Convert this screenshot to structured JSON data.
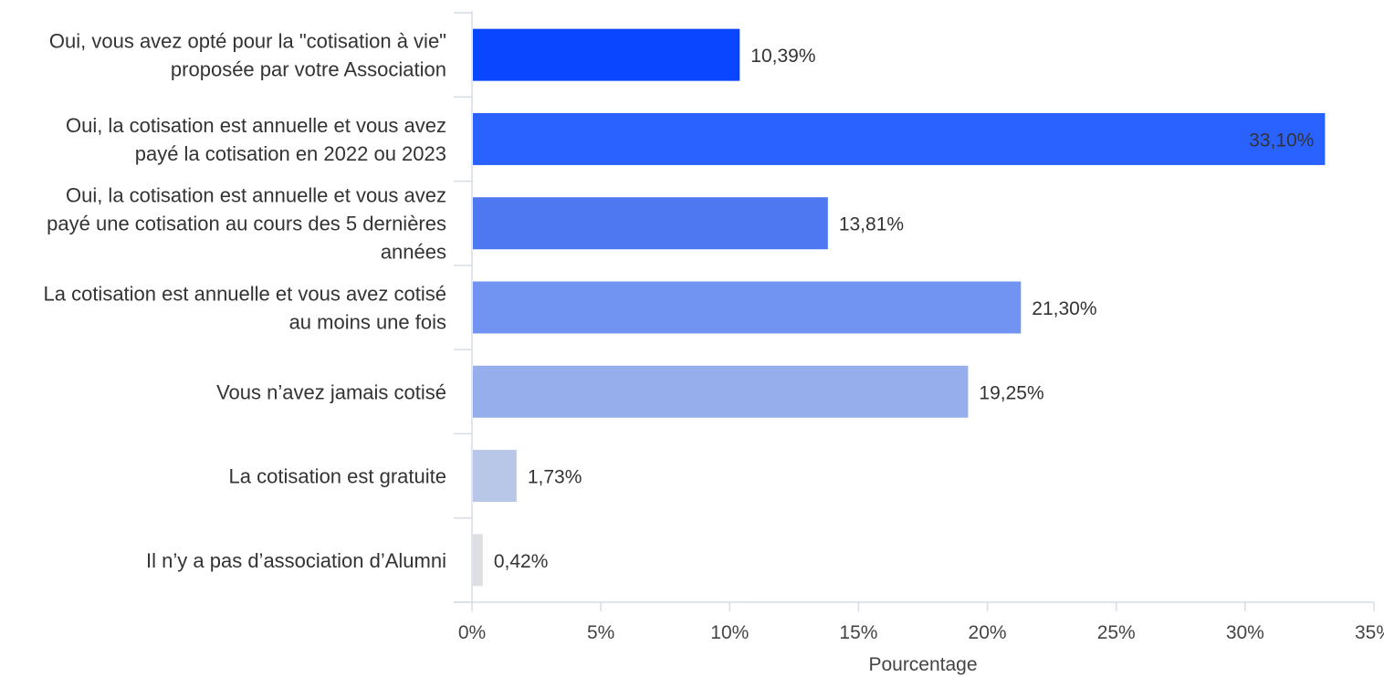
{
  "chart_data": {
    "type": "bar",
    "orientation": "horizontal",
    "title": "",
    "xlabel": "Pourcentage",
    "ylabel": "",
    "xlim": [
      0,
      35
    ],
    "grid": false,
    "categories": [
      [
        "Oui, vous avez opté pour la \"cotisation à vie\"",
        "proposée par votre Association"
      ],
      [
        "Oui, la cotisation est annuelle et vous avez",
        "payé la cotisation en 2022 ou 2023"
      ],
      [
        "Oui, la cotisation est annuelle et vous avez",
        "payé une cotisation au cours des 5 dernières",
        "années"
      ],
      [
        "La cotisation est annuelle et vous avez cotisé",
        "au moins une fois"
      ],
      [
        "Vous n’avez jamais cotisé"
      ],
      [
        "La cotisation est gratuite"
      ],
      [
        "Il n’y a pas d’association d’Alumni"
      ]
    ],
    "values": [
      10.39,
      33.1,
      13.81,
      21.3,
      19.25,
      1.73,
      0.42
    ],
    "value_labels": [
      "10,39%",
      "33,10%",
      "13,81%",
      "21,30%",
      "19,25%",
      "1,73%",
      "0,42%"
    ],
    "bar_colors": [
      "#0a46ff",
      "#2962ff",
      "#4d78f2",
      "#7194f2",
      "#96aeeb",
      "#b8c6e8",
      "#dedfe3"
    ],
    "ticks": [
      0,
      5,
      10,
      15,
      20,
      25,
      30,
      35
    ],
    "tick_labels": [
      "0%",
      "5%",
      "10%",
      "15%",
      "20%",
      "25%",
      "30%",
      "35%"
    ]
  }
}
